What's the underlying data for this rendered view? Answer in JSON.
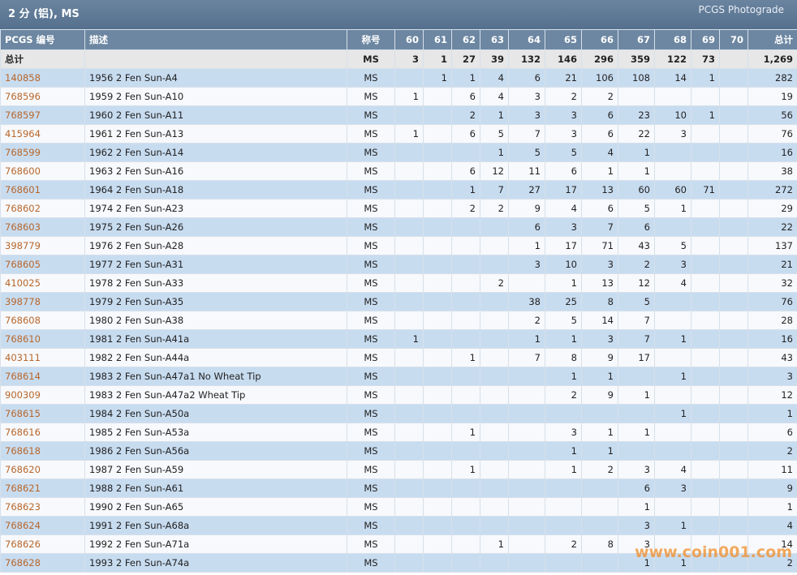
{
  "header": {
    "title": "2 分 (铝), MS",
    "right": "PCGS Photograde"
  },
  "table": {
    "columns": [
      "PCGS 编号",
      "描述",
      "称号",
      "60",
      "61",
      "62",
      "63",
      "64",
      "65",
      "66",
      "67",
      "68",
      "69",
      "70",
      "总计"
    ],
    "total": [
      "总计",
      null,
      "MS",
      3,
      1,
      27,
      39,
      132,
      146,
      296,
      359,
      122,
      73,
      null,
      "1,269"
    ],
    "rows": [
      [
        "140858",
        "1956 2 Fen Sun-A4",
        "MS",
        null,
        1,
        1,
        4,
        6,
        21,
        106,
        108,
        14,
        1,
        null,
        282
      ],
      [
        "768596",
        "1959 2 Fen Sun-A10",
        "MS",
        1,
        null,
        6,
        4,
        3,
        2,
        2,
        null,
        null,
        null,
        null,
        19
      ],
      [
        "768597",
        "1960 2 Fen Sun-A11",
        "MS",
        null,
        null,
        2,
        1,
        3,
        3,
        6,
        23,
        10,
        1,
        null,
        56
      ],
      [
        "415964",
        "1961 2 Fen Sun-A13",
        "MS",
        1,
        null,
        6,
        5,
        7,
        3,
        6,
        22,
        3,
        null,
        null,
        76
      ],
      [
        "768599",
        "1962 2 Fen Sun-A14",
        "MS",
        null,
        null,
        null,
        1,
        5,
        5,
        4,
        1,
        null,
        null,
        null,
        16
      ],
      [
        "768600",
        "1963 2 Fen Sun-A16",
        "MS",
        null,
        null,
        6,
        12,
        11,
        6,
        1,
        1,
        null,
        null,
        null,
        38
      ],
      [
        "768601",
        "1964 2 Fen Sun-A18",
        "MS",
        null,
        null,
        1,
        7,
        27,
        17,
        13,
        60,
        60,
        71,
        null,
        272
      ],
      [
        "768602",
        "1974 2 Fen Sun-A23",
        "MS",
        null,
        null,
        2,
        2,
        9,
        4,
        6,
        5,
        1,
        null,
        null,
        29
      ],
      [
        "768603",
        "1975 2 Fen Sun-A26",
        "MS",
        null,
        null,
        null,
        null,
        6,
        3,
        7,
        6,
        null,
        null,
        null,
        22
      ],
      [
        "398779",
        "1976 2 Fen Sun-A28",
        "MS",
        null,
        null,
        null,
        null,
        1,
        17,
        71,
        43,
        5,
        null,
        null,
        137
      ],
      [
        "768605",
        "1977 2 Fen Sun-A31",
        "MS",
        null,
        null,
        null,
        null,
        3,
        10,
        3,
        2,
        3,
        null,
        null,
        21
      ],
      [
        "410025",
        "1978 2 Fen Sun-A33",
        "MS",
        null,
        null,
        null,
        2,
        null,
        1,
        13,
        12,
        4,
        null,
        null,
        32
      ],
      [
        "398778",
        "1979 2 Fen Sun-A35",
        "MS",
        null,
        null,
        null,
        null,
        38,
        25,
        8,
        5,
        null,
        null,
        null,
        76
      ],
      [
        "768608",
        "1980 2 Fen Sun-A38",
        "MS",
        null,
        null,
        null,
        null,
        2,
        5,
        14,
        7,
        null,
        null,
        null,
        28
      ],
      [
        "768610",
        "1981 2 Fen Sun-A41a",
        "MS",
        1,
        null,
        null,
        null,
        1,
        1,
        3,
        7,
        1,
        null,
        null,
        16
      ],
      [
        "403111",
        "1982 2 Fen Sun-A44a",
        "MS",
        null,
        null,
        1,
        null,
        7,
        8,
        9,
        17,
        null,
        null,
        null,
        43
      ],
      [
        "768614",
        "1983 2 Fen Sun-A47a1 No Wheat Tip",
        "MS",
        null,
        null,
        null,
        null,
        null,
        1,
        1,
        null,
        1,
        null,
        null,
        3
      ],
      [
        "900309",
        "1983 2 Fen Sun-A47a2 Wheat Tip",
        "MS",
        null,
        null,
        null,
        null,
        null,
        2,
        9,
        1,
        null,
        null,
        null,
        12
      ],
      [
        "768615",
        "1984 2 Fen Sun-A50a",
        "MS",
        null,
        null,
        null,
        null,
        null,
        null,
        null,
        null,
        1,
        null,
        null,
        1
      ],
      [
        "768616",
        "1985 2 Fen Sun-A53a",
        "MS",
        null,
        null,
        1,
        null,
        null,
        3,
        1,
        1,
        null,
        null,
        null,
        6
      ],
      [
        "768618",
        "1986 2 Fen Sun-A56a",
        "MS",
        null,
        null,
        null,
        null,
        null,
        1,
        1,
        null,
        null,
        null,
        null,
        2
      ],
      [
        "768620",
        "1987 2 Fen Sun-A59",
        "MS",
        null,
        null,
        1,
        null,
        null,
        1,
        2,
        3,
        4,
        null,
        null,
        11
      ],
      [
        "768621",
        "1988 2 Fen Sun-A61",
        "MS",
        null,
        null,
        null,
        null,
        null,
        null,
        null,
        6,
        3,
        null,
        null,
        9
      ],
      [
        "768623",
        "1990 2 Fen Sun-A65",
        "MS",
        null,
        null,
        null,
        null,
        null,
        null,
        null,
        1,
        null,
        null,
        null,
        1
      ],
      [
        "768624",
        "1991 2 Fen Sun-A68a",
        "MS",
        null,
        null,
        null,
        null,
        null,
        null,
        null,
        3,
        1,
        null,
        null,
        4
      ],
      [
        "768626",
        "1992 2 Fen Sun-A71a",
        "MS",
        null,
        null,
        null,
        1,
        null,
        2,
        8,
        3,
        null,
        null,
        null,
        14
      ],
      [
        "768628",
        "1993 2 Fen Sun-A74a",
        "MS",
        null,
        null,
        null,
        null,
        null,
        null,
        null,
        1,
        1,
        null,
        null,
        2
      ]
    ]
  },
  "watermark": "www.coin001.com"
}
